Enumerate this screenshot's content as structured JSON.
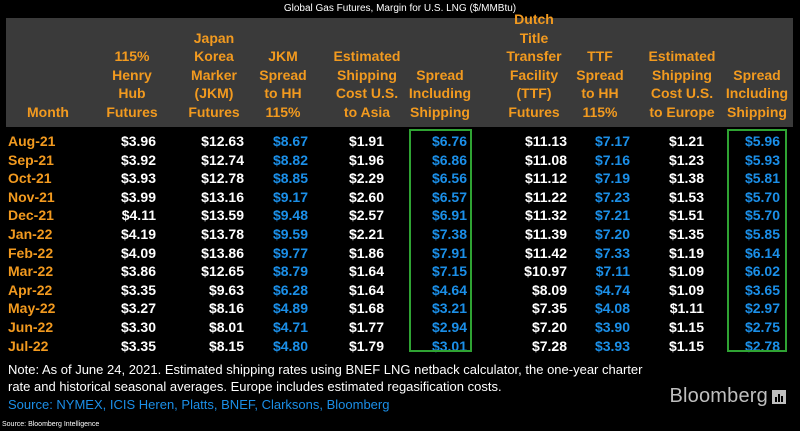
{
  "title": "Global Gas Futures, Margin for U.S. LNG ($/MMBtu)",
  "headers": [
    "Month",
    "115%\nHenry\nHub\nFutures",
    "Japan\nKorea\nMarker\n(JKM)\nFutures",
    "JKM\nSpread\nto HH\n115%",
    "Estimated\nShipping\nCost U.S.\nto Asia",
    "Spread\nIncluding\nShipping",
    "Dutch\nTitle\nTransfer\nFacility\n(TTF)\nFutures",
    "TTF\nSpread\nto HH\n115%",
    "Estimated\nShipping\nCost U.S.\nto Europe",
    "Spread\nIncluding\nShipping"
  ],
  "rows": [
    {
      "month": "Aug-21",
      "hh": "$3.96",
      "jkm": "$12.63",
      "jkm_spread": "$8.67",
      "ship_asia": "$1.91",
      "spread_asia": "$6.76",
      "ttf": "$11.13",
      "ttf_spread": "$7.17",
      "ship_eu": "$1.21",
      "spread_eu": "$5.96"
    },
    {
      "month": "Sep-21",
      "hh": "$3.92",
      "jkm": "$12.74",
      "jkm_spread": "$8.82",
      "ship_asia": "$1.96",
      "spread_asia": "$6.86",
      "ttf": "$11.08",
      "ttf_spread": "$7.16",
      "ship_eu": "$1.23",
      "spread_eu": "$5.93"
    },
    {
      "month": "Oct-21",
      "hh": "$3.93",
      "jkm": "$12.78",
      "jkm_spread": "$8.85",
      "ship_asia": "$2.29",
      "spread_asia": "$6.56",
      "ttf": "$11.12",
      "ttf_spread": "$7.19",
      "ship_eu": "$1.38",
      "spread_eu": "$5.81"
    },
    {
      "month": "Nov-21",
      "hh": "$3.99",
      "jkm": "$13.16",
      "jkm_spread": "$9.17",
      "ship_asia": "$2.60",
      "spread_asia": "$6.57",
      "ttf": "$11.22",
      "ttf_spread": "$7.23",
      "ship_eu": "$1.53",
      "spread_eu": "$5.70"
    },
    {
      "month": "Dec-21",
      "hh": "$4.11",
      "jkm": "$13.59",
      "jkm_spread": "$9.48",
      "ship_asia": "$2.57",
      "spread_asia": "$6.91",
      "ttf": "$11.32",
      "ttf_spread": "$7.21",
      "ship_eu": "$1.51",
      "spread_eu": "$5.70"
    },
    {
      "month": "Jan-22",
      "hh": "$4.19",
      "jkm": "$13.78",
      "jkm_spread": "$9.59",
      "ship_asia": "$2.21",
      "spread_asia": "$7.38",
      "ttf": "$11.39",
      "ttf_spread": "$7.20",
      "ship_eu": "$1.35",
      "spread_eu": "$5.85"
    },
    {
      "month": "Feb-22",
      "hh": "$4.09",
      "jkm": "$13.86",
      "jkm_spread": "$9.77",
      "ship_asia": "$1.86",
      "spread_asia": "$7.91",
      "ttf": "$11.42",
      "ttf_spread": "$7.33",
      "ship_eu": "$1.19",
      "spread_eu": "$6.14"
    },
    {
      "month": "Mar-22",
      "hh": "$3.86",
      "jkm": "$12.65",
      "jkm_spread": "$8.79",
      "ship_asia": "$1.64",
      "spread_asia": "$7.15",
      "ttf": "$10.97",
      "ttf_spread": "$7.11",
      "ship_eu": "$1.09",
      "spread_eu": "$6.02"
    },
    {
      "month": "Apr-22",
      "hh": "$3.35",
      "jkm": "$9.63",
      "jkm_spread": "$6.28",
      "ship_asia": "$1.64",
      "spread_asia": "$4.64",
      "ttf": "$8.09",
      "ttf_spread": "$4.74",
      "ship_eu": "$1.09",
      "spread_eu": "$3.65"
    },
    {
      "month": "May-22",
      "hh": "$3.27",
      "jkm": "$8.16",
      "jkm_spread": "$4.89",
      "ship_asia": "$1.68",
      "spread_asia": "$3.21",
      "ttf": "$7.35",
      "ttf_spread": "$4.08",
      "ship_eu": "$1.11",
      "spread_eu": "$2.97"
    },
    {
      "month": "Jun-22",
      "hh": "$3.30",
      "jkm": "$8.01",
      "jkm_spread": "$4.71",
      "ship_asia": "$1.77",
      "spread_asia": "$2.94",
      "ttf": "$7.20",
      "ttf_spread": "$3.90",
      "ship_eu": "$1.15",
      "spread_eu": "$2.75"
    },
    {
      "month": "Jul-22",
      "hh": "$3.35",
      "jkm": "$8.15",
      "jkm_spread": "$4.80",
      "ship_asia": "$1.79",
      "spread_asia": "$3.01",
      "ttf": "$7.28",
      "ttf_spread": "$3.93",
      "ship_eu": "$1.15",
      "spread_eu": "$2.78"
    }
  ],
  "note": "Note: As of June 24, 2021. Estimated shipping rates using BNEF LNG netback calculator, the one-year charter rate and historical seasonal averages. Europe includes estimated regasification costs.",
  "source": "Source: NYMEX, ICIS Heren, Platts, BNEF, Clarksons, Bloomberg",
  "brand": "Bloomberg",
  "footer": "Source: Bloomberg Intelligence",
  "colors": {
    "header_text": "#f29a1f",
    "blue_value": "#1b8fe8",
    "box": "#2fa333",
    "header_bg": "#3a3a3a"
  }
}
